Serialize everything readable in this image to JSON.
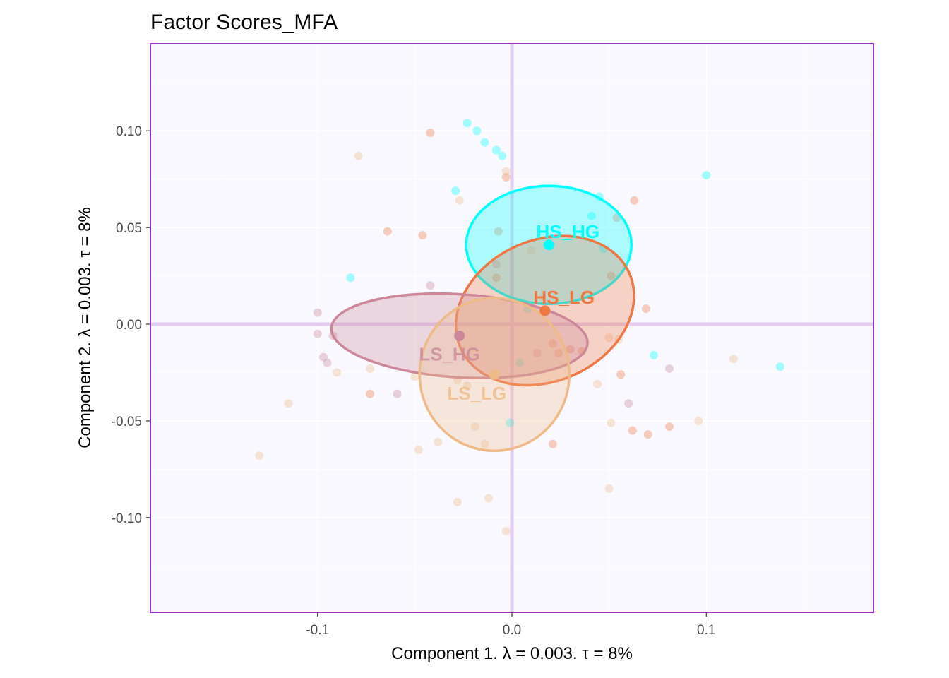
{
  "chart_data": {
    "type": "scatter",
    "title": "Factor Scores_MFA",
    "xlabel": "Component 1.   λ = 0.003.  τ = 8%",
    "ylabel": "Component 2.   λ = 0.003.  τ = 8%",
    "xlim": [
      -0.186,
      0.186
    ],
    "ylim": [
      -0.149,
      0.145
    ],
    "x_ticks": [
      -0.1,
      0.0,
      0.1
    ],
    "x_tick_labels": [
      "-0.1",
      "0.0",
      "0.1"
    ],
    "y_ticks": [
      -0.1,
      -0.05,
      0.0,
      0.05,
      0.1
    ],
    "y_tick_labels": [
      "-0.10",
      "-0.05",
      "0.00",
      "0.05",
      "0.10"
    ],
    "grid": true,
    "legend": "none",
    "colors": {
      "panel_background": "#f8f8fe",
      "panel_border": "#9933cc",
      "origin_lines": "#e3cdef",
      "grid": "#ffffff"
    },
    "groups": [
      {
        "name": "HS_HG",
        "color": "#00ffff",
        "label": "HS_HG",
        "center": [
          0.019,
          0.041
        ],
        "ellipse": {
          "rx": 0.0425,
          "ry": 0.0305,
          "rotation_deg": 0
        },
        "points": [
          [
            -0.023,
            0.104
          ],
          [
            -0.018,
            0.1
          ],
          [
            -0.014,
            0.094
          ],
          [
            -0.008,
            0.09
          ],
          [
            -0.005,
            0.087
          ],
          [
            -0.029,
            0.069
          ],
          [
            -0.083,
            0.024
          ],
          [
            0.045,
            0.066
          ],
          [
            0.041,
            0.056
          ],
          [
            0.047,
            0.039
          ],
          [
            0.1,
            0.077
          ],
          [
            0.008,
            0.008
          ],
          [
            0.073,
            -0.016
          ],
          [
            0.138,
            -0.022
          ],
          [
            0.004,
            -0.02
          ],
          [
            -0.001,
            -0.051
          ]
        ]
      },
      {
        "name": "HS_LG",
        "color": "#ee7744",
        "label": "HS_LG",
        "center": [
          0.017,
          0.007
        ],
        "ellipse": {
          "rx": 0.0475,
          "ry": 0.0365,
          "rotation_deg": -24
        },
        "points": [
          [
            -0.042,
            0.099
          ],
          [
            -0.003,
            0.076
          ],
          [
            -0.064,
            0.048
          ],
          [
            -0.046,
            0.046
          ],
          [
            -0.007,
            0.048
          ],
          [
            0.063,
            0.064
          ],
          [
            0.054,
            0.055
          ],
          [
            0.051,
            0.025
          ],
          [
            -0.008,
            0.024
          ],
          [
            0.069,
            0.008
          ],
          [
            0.021,
            -0.01
          ],
          [
            0.024,
            -0.015
          ],
          [
            0.03,
            -0.013
          ],
          [
            0.036,
            -0.014
          ],
          [
            0.056,
            -0.026
          ],
          [
            0.062,
            -0.055
          ],
          [
            0.07,
            -0.057
          ],
          [
            0.081,
            -0.053
          ],
          [
            0.021,
            -0.062
          ],
          [
            -0.073,
            -0.036
          ]
        ]
      },
      {
        "name": "LS_HG",
        "color": "#cc8899",
        "label": "LS_HG",
        "center": [
          -0.027,
          -0.006
        ],
        "ellipse": {
          "rx": 0.066,
          "ry": 0.0215,
          "rotation_deg": 3.5
        },
        "points": [
          [
            -0.1,
            0.006
          ],
          [
            -0.1,
            -0.005
          ],
          [
            -0.092,
            -0.006
          ],
          [
            -0.097,
            -0.017
          ],
          [
            -0.095,
            -0.02
          ],
          [
            -0.042,
            0.02
          ],
          [
            -0.008,
            0.031
          ],
          [
            -0.059,
            -0.036
          ],
          [
            0.013,
            -0.015
          ],
          [
            0.06,
            -0.041
          ],
          [
            0.081,
            -0.023
          ]
        ]
      },
      {
        "name": "LS_LG",
        "color": "#eebb88",
        "label": "LS_LG",
        "center": [
          -0.009,
          -0.026
        ],
        "ellipse": {
          "rx": 0.0385,
          "ry": 0.0395,
          "rotation_deg": 0
        },
        "points": [
          [
            -0.079,
            0.087
          ],
          [
            -0.003,
            0.079
          ],
          [
            -0.027,
            0.064
          ],
          [
            0.01,
            0.038
          ],
          [
            -0.073,
            -0.023
          ],
          [
            -0.05,
            -0.027
          ],
          [
            -0.09,
            -0.025
          ],
          [
            -0.115,
            -0.041
          ],
          [
            -0.13,
            -0.068
          ],
          [
            -0.048,
            -0.065
          ],
          [
            -0.038,
            -0.061
          ],
          [
            -0.019,
            -0.053
          ],
          [
            -0.014,
            -0.062
          ],
          [
            -0.028,
            -0.092
          ],
          [
            -0.012,
            -0.09
          ],
          [
            -0.003,
            -0.107
          ],
          [
            -0.028,
            -0.029
          ],
          [
            0.05,
            -0.007
          ],
          [
            0.055,
            -0.008
          ],
          [
            0.044,
            -0.031
          ],
          [
            0.051,
            -0.051
          ],
          [
            0.05,
            -0.085
          ],
          [
            0.096,
            -0.05
          ],
          [
            0.114,
            -0.018
          ],
          [
            -0.023,
            -0.032
          ]
        ]
      }
    ]
  }
}
